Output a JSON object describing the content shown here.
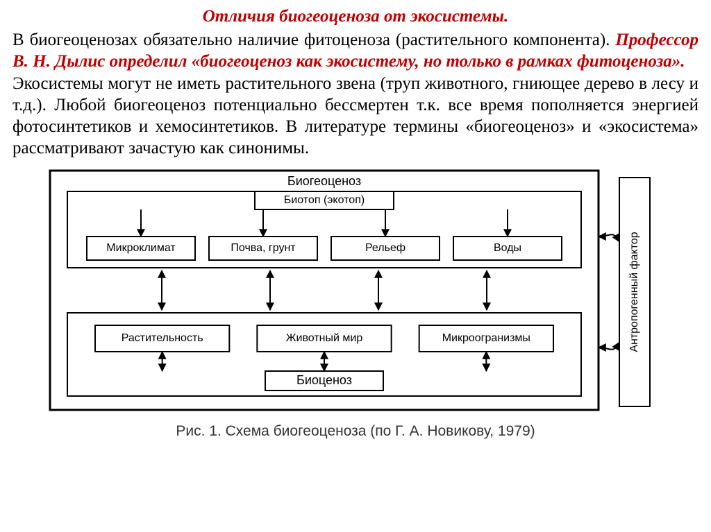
{
  "title": "Отличия биогеоценоза от экосистемы.",
  "para1_a": "В биогеоценозах обязательно наличие фитоценоза (растительного компонента). ",
  "para1_b": "Профессор В. Н. Дылис определил «биогеоценоз как экосистему, но только в рамках фитоценоза».",
  "para2": "Экосистемы могут не иметь растительного звена (труп животного, гниющее дерево в лесу и т.д.). Любой биогеоценоз потенциально бессмертен т.к. все время пополняется энергией фотосинтетиков и хемосинтетиков. В литературе термины «биогеоценоз» и «экосистема» рассматривают зачастую как синонимы.",
  "caption": "Рис. 1. Схема биогеоценоза (по Г. А. Новикову, 1979)",
  "diagram": {
    "outer_label": "Биогеоценоз",
    "biotope_label": "Биотоп  (экотоп)",
    "biotope_items": [
      "Микроклимат",
      "Почва, грунт",
      "Рельеф",
      "Воды"
    ],
    "biocenosis_label": "Биоценоз",
    "biocenosis_items": [
      "Растительность",
      "Животный мир",
      "Микроогранизмы"
    ],
    "side_label": "Антропогенный фактор",
    "colors": {
      "stroke": "#000000",
      "fill": "#ffffff",
      "text": "#000000"
    },
    "font_family": "Arial, sans-serif",
    "label_fontsize": 18,
    "item_fontsize": 16
  }
}
